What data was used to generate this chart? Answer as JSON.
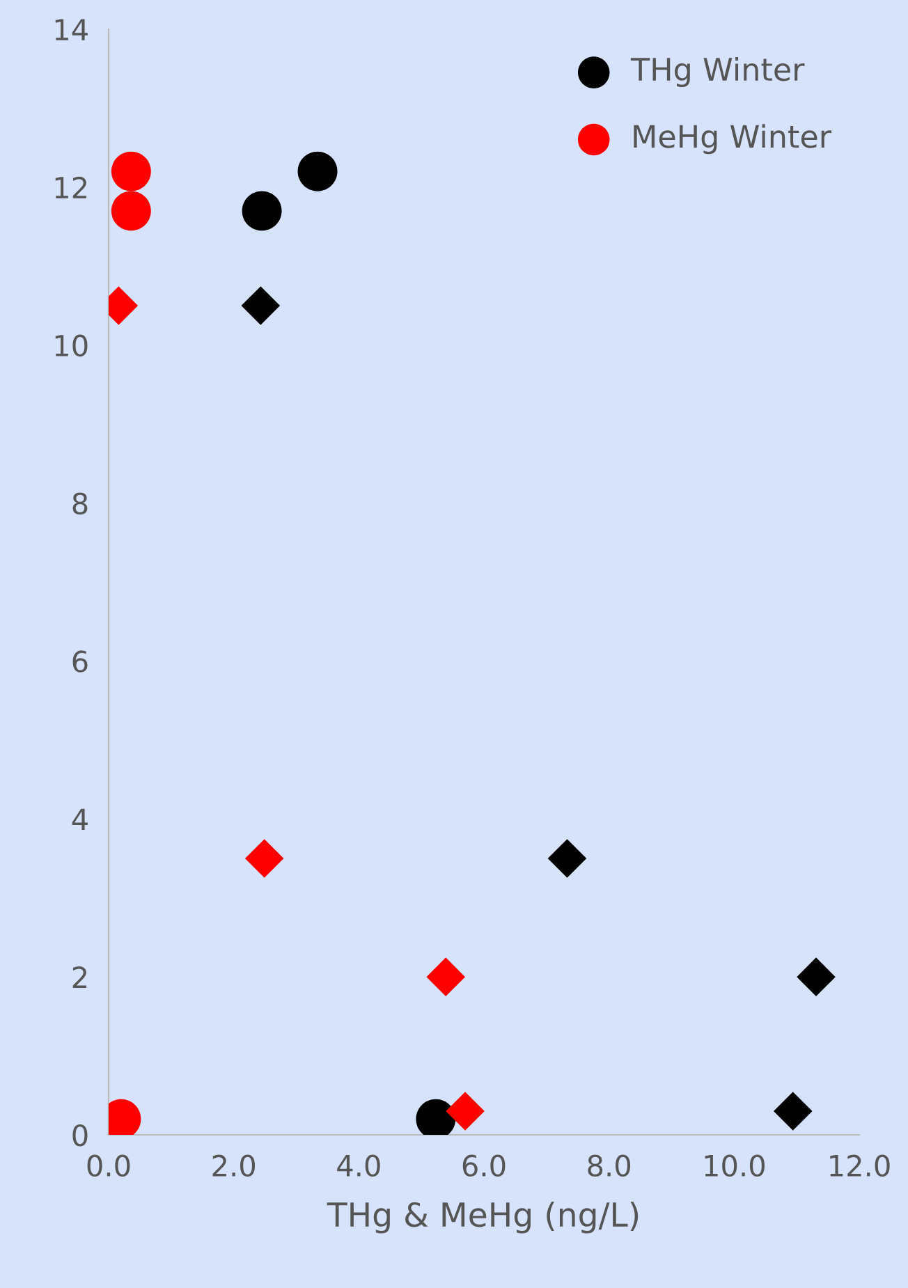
{
  "chart_data": {
    "type": "scatter",
    "xlabel": "THg & MeHg (ng/L)",
    "xlim": [
      0,
      12
    ],
    "xticks": [
      {
        "value": 0,
        "label": "0.0"
      },
      {
        "value": 2,
        "label": "2.0"
      },
      {
        "value": 4,
        "label": "4.0"
      },
      {
        "value": 6,
        "label": "6.0"
      },
      {
        "value": 8,
        "label": "8.0"
      },
      {
        "value": 10,
        "label": "10.0"
      },
      {
        "value": 12,
        "label": "12.0"
      }
    ],
    "ylim": [
      0,
      14
    ],
    "yticks": [
      0,
      2,
      4,
      6,
      8,
      10,
      12,
      14
    ],
    "grid": false,
    "legend": "top right",
    "series": [
      {
        "name": "THg Winter",
        "color": "#000000",
        "marker": "circle",
        "x": [
          2.45,
          3.34,
          5.23
        ],
        "values": [
          11.7,
          12.2,
          0.2
        ]
      },
      {
        "name": "MeHg Winter",
        "color": "#ff0000",
        "marker": "circle",
        "x": [
          0.36,
          0.36,
          0.2
        ],
        "values": [
          12.2,
          11.7,
          0.2
        ]
      },
      {
        "color": "#000000",
        "marker": "diamond",
        "x": [
          2.43,
          7.33,
          11.31,
          10.94
        ],
        "values": [
          10.5,
          3.5,
          2.0,
          0.3
        ]
      },
      {
        "color": "#ff0000",
        "marker": "diamond",
        "x": [
          0.16,
          2.49,
          5.39,
          5.7
        ],
        "values": [
          10.5,
          3.5,
          2.0,
          0.3
        ]
      }
    ]
  }
}
